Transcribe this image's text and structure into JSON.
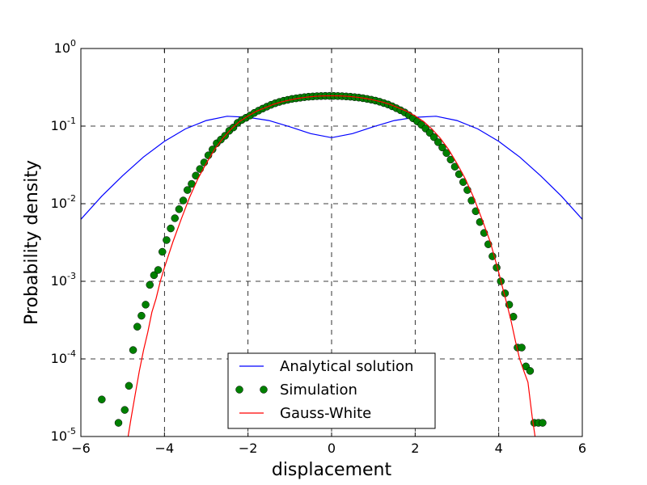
{
  "chart_data": {
    "type": "line",
    "title": "",
    "xlabel": "displacement",
    "ylabel": "Probability density",
    "xlim": [
      -6,
      6
    ],
    "ylim": [
      1e-05,
      1
    ],
    "yscale": "log",
    "grid": true,
    "grid_style": "dashed",
    "x_ticks": [
      -6,
      -4,
      -2,
      0,
      2,
      4,
      6
    ],
    "x_tick_labels": [
      "−6",
      "−4",
      "−2",
      "0",
      "2",
      "4",
      "6"
    ],
    "y_ticks": [
      1e-05,
      0.0001,
      0.001,
      0.01,
      0.1,
      1
    ],
    "y_tick_labels": [
      {
        "base": "10",
        "exp": "-5"
      },
      {
        "base": "10",
        "exp": "-4"
      },
      {
        "base": "10",
        "exp": "-3"
      },
      {
        "base": "10",
        "exp": "-2"
      },
      {
        "base": "10",
        "exp": "-1"
      },
      {
        "base": "10",
        "exp": "0"
      }
    ],
    "legend": {
      "placement": "lower-center"
    },
    "series": [
      {
        "name": "Analytical solution",
        "kind": "line",
        "color": "#0000ff",
        "x": [
          -6,
          -5.5,
          -5,
          -4.5,
          -4,
          -3.5,
          -3,
          -2.5,
          -2,
          -1.5,
          -1,
          -0.5,
          0,
          0.5,
          1,
          1.5,
          2,
          2.5,
          3,
          3.5,
          4,
          4.5,
          5,
          5.5,
          6
        ],
        "y": [
          0.0063,
          0.0125,
          0.023,
          0.04,
          0.0635,
          0.092,
          0.118,
          0.134,
          0.13,
          0.118,
          0.098,
          0.08,
          0.071,
          0.08,
          0.098,
          0.118,
          0.13,
          0.134,
          0.118,
          0.092,
          0.0635,
          0.04,
          0.023,
          0.0125,
          0.0063
        ]
      },
      {
        "name": "Simulation",
        "kind": "markers",
        "color": "#008000",
        "x": [
          -5.5,
          -5.1,
          -4.95,
          -4.85,
          -4.75,
          -4.65,
          -4.55,
          -4.45,
          -4.35,
          -4.25,
          -4.15,
          -4.05,
          -3.95,
          -3.85,
          -3.75,
          -3.65,
          -3.55,
          -3.45,
          -3.35,
          -3.25,
          -3.15,
          -3.05,
          -2.95,
          -2.85,
          -2.75,
          -2.65,
          -2.55,
          -2.45,
          -2.35,
          -2.25,
          -2.15,
          -2.05,
          -1.95,
          -1.85,
          -1.75,
          -1.65,
          -1.55,
          -1.45,
          -1.35,
          -1.25,
          -1.15,
          -1.05,
          -0.95,
          -0.85,
          -0.75,
          -0.65,
          -0.55,
          -0.45,
          -0.35,
          -0.25,
          -0.15,
          -0.05,
          0.05,
          0.15,
          0.25,
          0.35,
          0.45,
          0.55,
          0.65,
          0.75,
          0.85,
          0.95,
          1.05,
          1.15,
          1.25,
          1.35,
          1.45,
          1.55,
          1.65,
          1.75,
          1.85,
          1.95,
          2.05,
          2.15,
          2.25,
          2.35,
          2.45,
          2.55,
          2.65,
          2.75,
          2.85,
          2.95,
          3.05,
          3.15,
          3.25,
          3.35,
          3.45,
          3.55,
          3.65,
          3.75,
          3.85,
          3.95,
          4.05,
          4.15,
          4.25,
          4.35,
          4.45,
          4.55,
          4.65,
          4.75,
          4.85,
          4.95,
          5.05
        ],
        "y": [
          3e-05,
          1.5e-05,
          2.2e-05,
          4.5e-05,
          0.00013,
          0.00026,
          0.00036,
          0.0005,
          0.0009,
          0.0012,
          0.0014,
          0.0024,
          0.0034,
          0.0048,
          0.0065,
          0.0085,
          0.011,
          0.015,
          0.018,
          0.023,
          0.028,
          0.034,
          0.042,
          0.05,
          0.06,
          0.067,
          0.075,
          0.087,
          0.096,
          0.11,
          0.12,
          0.128,
          0.137,
          0.148,
          0.158,
          0.168,
          0.178,
          0.188,
          0.197,
          0.205,
          0.212,
          0.218,
          0.224,
          0.228,
          0.232,
          0.236,
          0.239,
          0.241,
          0.243,
          0.244,
          0.245,
          0.245,
          0.245,
          0.244,
          0.243,
          0.241,
          0.239,
          0.236,
          0.233,
          0.229,
          0.224,
          0.219,
          0.213,
          0.206,
          0.198,
          0.19,
          0.18,
          0.17,
          0.16,
          0.15,
          0.138,
          0.126,
          0.115,
          0.104,
          0.093,
          0.082,
          0.072,
          0.062,
          0.053,
          0.045,
          0.037,
          0.03,
          0.024,
          0.019,
          0.015,
          0.011,
          0.008,
          0.0058,
          0.0042,
          0.003,
          0.0021,
          0.0015,
          0.001,
          0.0007,
          0.0005,
          0.00035,
          0.00014,
          0.00014,
          8e-05,
          7e-05,
          1.5e-05,
          1.5e-05,
          1.5e-05
        ]
      },
      {
        "name": "Gauss-White",
        "kind": "line",
        "color": "#ff0000",
        "x": [
          -4.87,
          -4.8,
          -4.7,
          -4.6,
          -4.5,
          -4.4,
          -4.3,
          -4.2,
          -4.1,
          -4.0,
          -3.8,
          -3.6,
          -3.4,
          -3.2,
          -3.0,
          -2.8,
          -2.6,
          -2.4,
          -2.2,
          -2.0,
          -1.8,
          -1.6,
          -1.4,
          -1.2,
          -1.0,
          -0.8,
          -0.6,
          -0.4,
          -0.2,
          0,
          0.2,
          0.4,
          0.6,
          0.8,
          1.0,
          1.2,
          1.4,
          1.6,
          1.8,
          2.0,
          2.2,
          2.4,
          2.6,
          2.8,
          3.0,
          3.2,
          3.4,
          3.6,
          3.8,
          4.0,
          4.1,
          4.2,
          4.3,
          4.4,
          4.5,
          4.6,
          4.7,
          4.75,
          4.8,
          4.87
        ],
        "y": [
          1e-05,
          1.7e-05,
          3.5e-05,
          7e-05,
          0.00013,
          0.00022,
          0.0004,
          0.0006,
          0.001,
          0.0015,
          0.0032,
          0.0063,
          0.012,
          0.021,
          0.033,
          0.05,
          0.07,
          0.092,
          0.115,
          0.135,
          0.155,
          0.172,
          0.19,
          0.205,
          0.217,
          0.228,
          0.236,
          0.242,
          0.245,
          0.246,
          0.245,
          0.242,
          0.236,
          0.228,
          0.217,
          0.205,
          0.19,
          0.172,
          0.155,
          0.135,
          0.115,
          0.092,
          0.07,
          0.05,
          0.033,
          0.021,
          0.012,
          0.0063,
          0.0032,
          0.0013,
          0.0008,
          0.0005,
          0.0003,
          0.00017,
          0.0001,
          7e-05,
          5e-05,
          3e-05,
          1.8e-05,
          1e-05
        ]
      }
    ]
  }
}
